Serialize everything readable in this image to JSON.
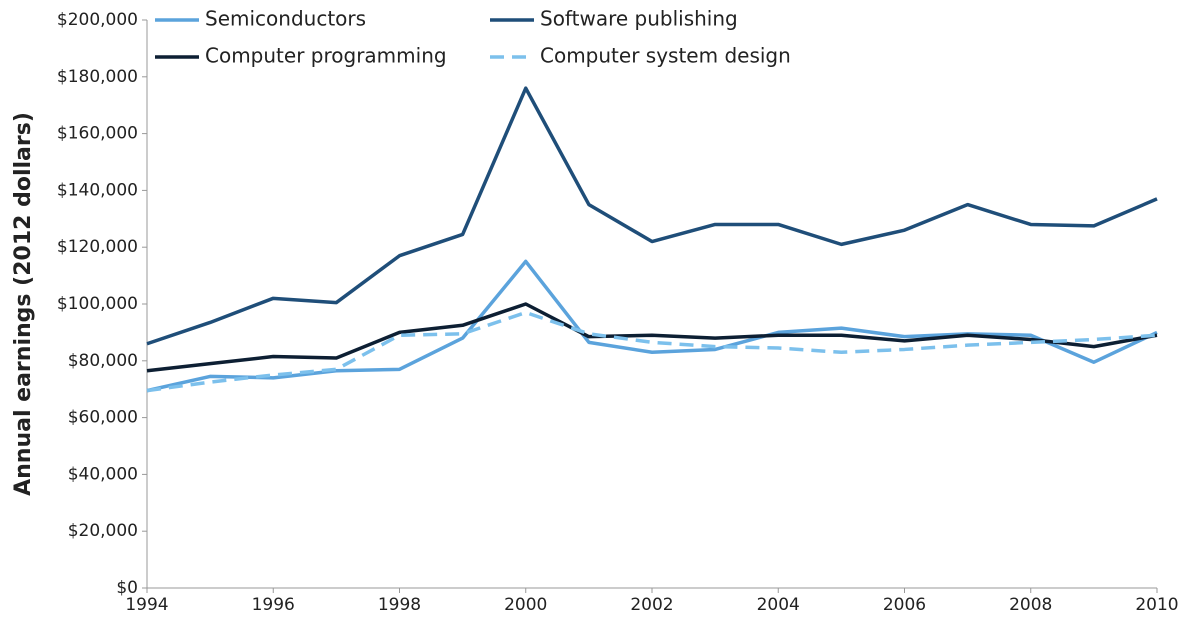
{
  "chart_data": {
    "type": "line",
    "y_label": "Annual earnings (2012 dollars)",
    "x": [
      1994,
      1995,
      1996,
      1997,
      1998,
      1999,
      2000,
      2001,
      2002,
      2003,
      2004,
      2005,
      2006,
      2007,
      2008,
      2009,
      2010
    ],
    "series": [
      {
        "name": "Semiconductors",
        "color": "#5ba3dc",
        "dashed": false,
        "values": [
          69500,
          74500,
          74000,
          76500,
          77000,
          88000,
          115000,
          86500,
          83000,
          84000,
          90000,
          91500,
          88500,
          89500,
          89000,
          79500,
          90000
        ]
      },
      {
        "name": "Software publishing",
        "color": "#1f4e79",
        "dashed": false,
        "values": [
          86000,
          93500,
          102000,
          100500,
          117000,
          124500,
          176000,
          135000,
          122000,
          128000,
          128000,
          121000,
          126000,
          135000,
          128000,
          127500,
          137000
        ]
      },
      {
        "name": "Computer programming",
        "color": "#0d1f33",
        "dashed": false,
        "values": [
          76500,
          79000,
          81500,
          81000,
          90000,
          92500,
          100000,
          88500,
          89000,
          88000,
          89000,
          89000,
          87000,
          89000,
          87500,
          85000,
          89000
        ]
      },
      {
        "name": "Computer system design",
        "color": "#7cc0ec",
        "dashed": true,
        "values": [
          69500,
          72500,
          75000,
          77000,
          89000,
          89500,
          97000,
          89500,
          86500,
          85000,
          84500,
          83000,
          84000,
          85500,
          86500,
          87500,
          89000
        ]
      }
    ],
    "xlim": [
      1994,
      2010
    ],
    "xticks": [
      1994,
      1996,
      1998,
      2000,
      2002,
      2004,
      2006,
      2008,
      2010
    ],
    "ylim": [
      0,
      200000
    ],
    "yticks": [
      {
        "value": 0,
        "label": "$0"
      },
      {
        "value": 20000,
        "label": "$20,000"
      },
      {
        "value": 40000,
        "label": "$40,000"
      },
      {
        "value": 60000,
        "label": "$60,000"
      },
      {
        "value": 80000,
        "label": "$80,000"
      },
      {
        "value": 100000,
        "label": "$100,000"
      },
      {
        "value": 120000,
        "label": "$120,000"
      },
      {
        "value": 140000,
        "label": "$140,000"
      },
      {
        "value": 160000,
        "label": "$160,000"
      },
      {
        "value": 180000,
        "label": "$180,000"
      },
      {
        "value": 200000,
        "label": "$200,000"
      }
    ],
    "grid": false
  }
}
